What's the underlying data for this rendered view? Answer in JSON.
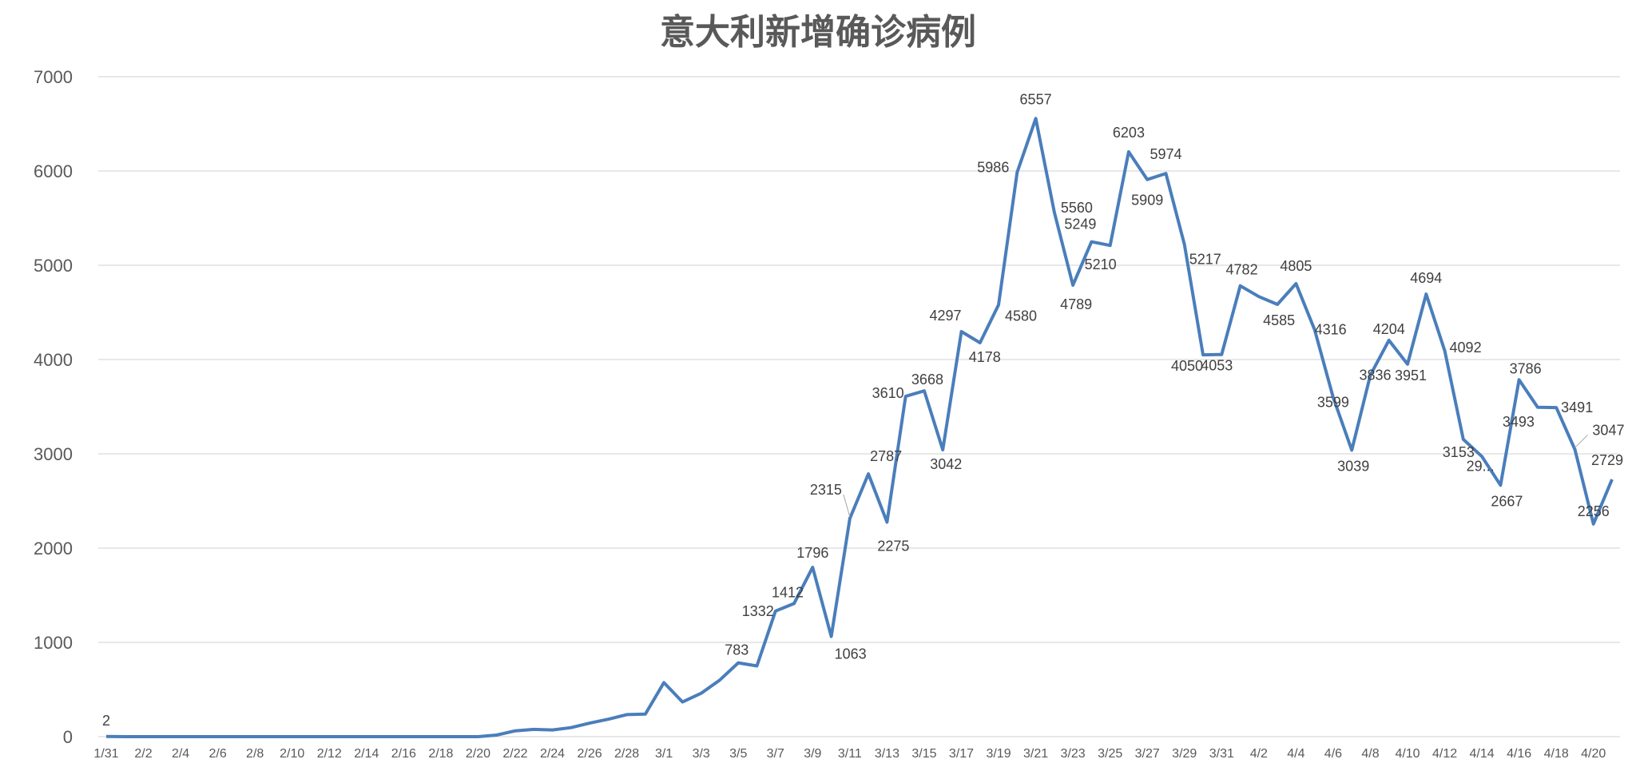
{
  "chart_data": {
    "type": "line",
    "title": "意大利新增确诊病例",
    "xlabel": "",
    "ylabel": "",
    "ylim": [
      0,
      7000
    ],
    "yticks": [
      0,
      1000,
      2000,
      3000,
      4000,
      5000,
      6000,
      7000
    ],
    "grid": true,
    "legend": "none",
    "line_color": "#4a7ebb",
    "x": [
      "1/31",
      "2/1",
      "2/2",
      "2/3",
      "2/4",
      "2/5",
      "2/6",
      "2/7",
      "2/8",
      "2/9",
      "2/10",
      "2/11",
      "2/12",
      "2/13",
      "2/14",
      "2/15",
      "2/16",
      "2/17",
      "2/18",
      "2/19",
      "2/20",
      "2/21",
      "2/22",
      "2/23",
      "2/24",
      "2/25",
      "2/26",
      "2/27",
      "2/28",
      "2/29",
      "3/1",
      "3/2",
      "3/3",
      "3/4",
      "3/5",
      "3/6",
      "3/7",
      "3/8",
      "3/9",
      "3/10",
      "3/11",
      "3/12",
      "3/13",
      "3/14",
      "3/15",
      "3/16",
      "3/17",
      "3/18",
      "3/19",
      "3/20",
      "3/21",
      "3/22",
      "3/23",
      "3/24",
      "3/25",
      "3/26",
      "3/27",
      "3/28",
      "3/29",
      "3/30",
      "3/31",
      "4/1",
      "4/2",
      "4/3",
      "4/4",
      "4/5",
      "4/6",
      "4/7",
      "4/8",
      "4/9",
      "4/10",
      "4/11",
      "4/12",
      "4/13",
      "4/14",
      "4/15",
      "4/16",
      "4/17",
      "4/18",
      "4/19",
      "4/20",
      "4/21"
    ],
    "x_tick_labels": [
      "1/31",
      "2/2",
      "2/4",
      "2/6",
      "2/8",
      "2/10",
      "2/12",
      "2/14",
      "2/16",
      "2/18",
      "2/20",
      "2/22",
      "2/24",
      "2/26",
      "2/28",
      "3/1",
      "3/3",
      "3/5",
      "3/7",
      "3/9",
      "3/11",
      "3/13",
      "3/15",
      "3/17",
      "3/19",
      "3/21",
      "3/23",
      "3/25",
      "3/27",
      "3/29",
      "3/31",
      "4/2",
      "4/4",
      "4/6",
      "4/8",
      "4/10",
      "4/12",
      "4/14",
      "4/16",
      "4/18",
      "4/20"
    ],
    "series": [
      {
        "values": [
          2,
          0,
          0,
          0,
          0,
          0,
          0,
          0,
          0,
          0,
          0,
          0,
          0,
          0,
          0,
          0,
          0,
          0,
          0,
          0,
          0,
          17,
          62,
          77,
          71,
          96,
          143,
          185,
          234,
          240,
          573,
          368,
          460,
          600,
          783,
          750,
          1332,
          1412,
          1796,
          1063,
          2315,
          2787,
          2275,
          3610,
          3668,
          3042,
          4297,
          4178,
          4580,
          5986,
          6557,
          5560,
          4789,
          5249,
          5210,
          6203,
          5909,
          5974,
          5217,
          4050,
          4053,
          4782,
          4668,
          4585,
          4805,
          4316,
          3599,
          3039,
          3836,
          4204,
          3951,
          4694,
          4092,
          3153,
          2972,
          2667,
          3786,
          3493,
          3491,
          3047,
          2256,
          2729
        ]
      }
    ],
    "data_labels": [
      {
        "x": "1/31",
        "text": "2"
      },
      {
        "x": "3/5",
        "text": "783"
      },
      {
        "x": "3/7",
        "text": "1332"
      },
      {
        "x": "3/8",
        "text": "1412"
      },
      {
        "x": "3/9",
        "text": "1796"
      },
      {
        "x": "3/10",
        "text": "1063"
      },
      {
        "x": "3/11",
        "text": "2315"
      },
      {
        "x": "3/12",
        "text": "2787"
      },
      {
        "x": "3/13",
        "text": "2275"
      },
      {
        "x": "3/14",
        "text": "3610"
      },
      {
        "x": "3/15",
        "text": "3668"
      },
      {
        "x": "3/16",
        "text": "3042"
      },
      {
        "x": "3/17",
        "text": "4297"
      },
      {
        "x": "3/18",
        "text": "4178"
      },
      {
        "x": "3/19",
        "text": "4580"
      },
      {
        "x": "3/20",
        "text": "5986"
      },
      {
        "x": "3/21",
        "text": "6557"
      },
      {
        "x": "3/22",
        "text": "5560"
      },
      {
        "x": "3/23",
        "text": "4789"
      },
      {
        "x": "3/24",
        "text": "5249"
      },
      {
        "x": "3/25",
        "text": "5210"
      },
      {
        "x": "3/26",
        "text": "6203"
      },
      {
        "x": "3/27",
        "text": "5909"
      },
      {
        "x": "3/28",
        "text": "5974"
      },
      {
        "x": "3/29",
        "text": "5217"
      },
      {
        "x": "3/30",
        "text": "4050"
      },
      {
        "x": "3/31",
        "text": "4053"
      },
      {
        "x": "4/1",
        "text": "4782"
      },
      {
        "x": "4/3",
        "text": "4585"
      },
      {
        "x": "4/4",
        "text": "4805"
      },
      {
        "x": "4/5",
        "text": "4316"
      },
      {
        "x": "4/6",
        "text": "3599"
      },
      {
        "x": "4/7",
        "text": "3039"
      },
      {
        "x": "4/8",
        "text": "3836"
      },
      {
        "x": "4/9",
        "text": "4204"
      },
      {
        "x": "4/10",
        "text": "3951"
      },
      {
        "x": "4/11",
        "text": "4694"
      },
      {
        "x": "4/12",
        "text": "4092"
      },
      {
        "x": "4/13",
        "text": "3153"
      },
      {
        "x": "4/14",
        "text": "29..."
      },
      {
        "x": "4/15",
        "text": "2667"
      },
      {
        "x": "4/16",
        "text": "3786"
      },
      {
        "x": "4/17",
        "text": "3493"
      },
      {
        "x": "4/18",
        "text": "3491"
      },
      {
        "x": "4/19",
        "text": "3047"
      },
      {
        "x": "4/20",
        "text": "2256"
      },
      {
        "x": "4/21",
        "text": "2729"
      }
    ]
  }
}
